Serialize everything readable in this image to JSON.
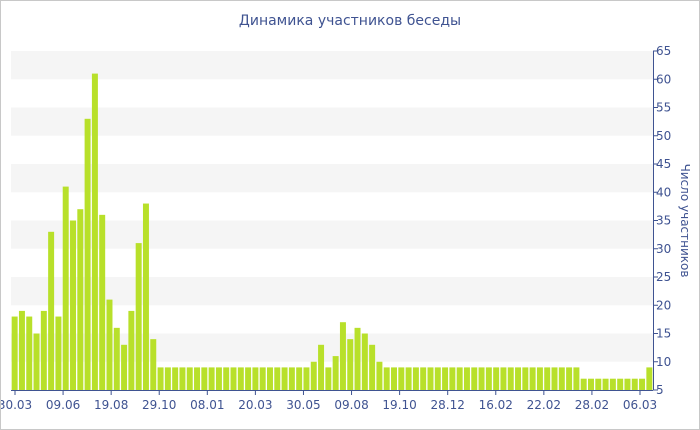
{
  "chart_data": {
    "type": "bar",
    "title": "Динамика участников беседы",
    "ylabel": "Число участников",
    "xlabel": "",
    "ylim": [
      5,
      65
    ],
    "ytick_step": 5,
    "y_axis_position": "right",
    "grid": "alternating horizontal bands",
    "legend": "none",
    "bar_color": "#b8e02a",
    "x_tick_labels": [
      "30.03",
      "09.06",
      "19.08",
      "29.10",
      "08.01",
      "20.03",
      "30.05",
      "09.08",
      "19.10",
      "28.12",
      "16.02",
      "22.02",
      "28.02",
      "06.03"
    ],
    "values": [
      18,
      19,
      18,
      15,
      19,
      33,
      18,
      41,
      35,
      37,
      53,
      61,
      36,
      21,
      16,
      13,
      19,
      31,
      38,
      14,
      9,
      9,
      9,
      9,
      9,
      9,
      9,
      9,
      9,
      9,
      9,
      9,
      9,
      9,
      9,
      9,
      9,
      9,
      9,
      9,
      9,
      10,
      13,
      9,
      11,
      17,
      14,
      16,
      15,
      13,
      10,
      9,
      9,
      9,
      9,
      9,
      9,
      9,
      9,
      9,
      9,
      9,
      9,
      9,
      9,
      9,
      9,
      9,
      9,
      9,
      9,
      9,
      9,
      9,
      9,
      9,
      9,
      9,
      7,
      7,
      7,
      7,
      7,
      7,
      7,
      7,
      7,
      9
    ]
  }
}
